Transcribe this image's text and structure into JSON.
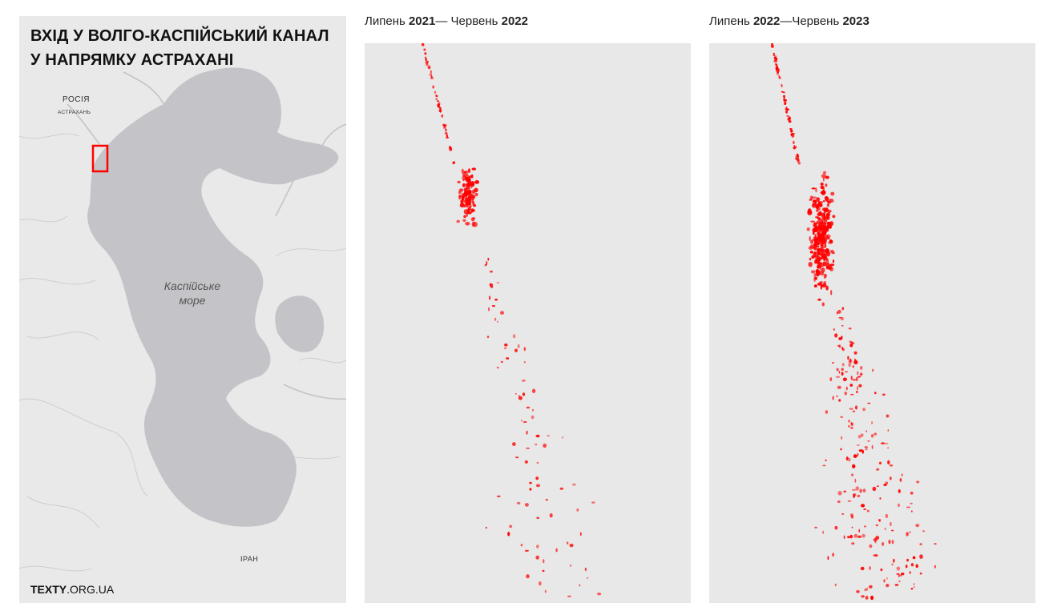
{
  "map": {
    "title": "ВХІД У ВОЛГО-КАСПІЙСЬКИЙ КАНАЛ У НАПРЯМКУ АСТРАХАНІ",
    "labels": {
      "russia": "РОСІЯ",
      "astrakhan": "АСТРАХАНЬ",
      "sea": "Каспійське море",
      "iran": "ІРАН"
    },
    "brand": {
      "bold": "TEXTY",
      "rest": ".ORG.UA"
    },
    "highlight_color": "#ff0000",
    "sea_color": "#c4c4c8",
    "land_color": "#e9e9e9"
  },
  "panels": [
    {
      "heading_prefix": "Липень ",
      "heading_year1": "2021",
      "heading_mid": "— Червень ",
      "heading_year2": "2022"
    },
    {
      "heading_prefix": "Липень ",
      "heading_year1": "2022",
      "heading_mid": "—Червень ",
      "heading_year2": "2023"
    }
  ],
  "colors": {
    "detections": "#ff0000",
    "panel_bg": "#e8e8e8"
  }
}
